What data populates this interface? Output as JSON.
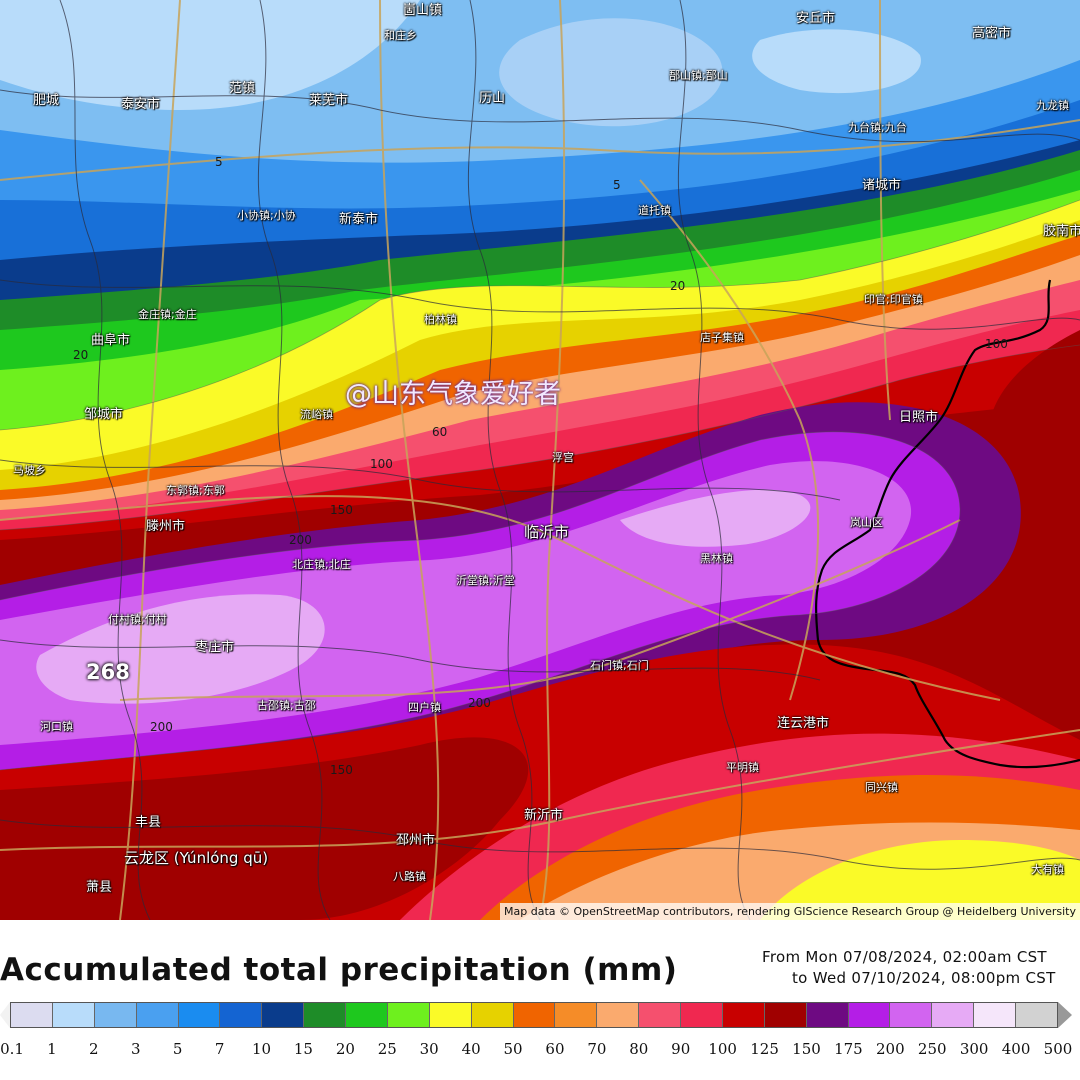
{
  "map": {
    "watermark": "@山东气象爱好者",
    "attribution": "Map data © OpenStreetMap contributors, rendering GIScience Research Group @ Heidelberg University",
    "max_value_label": "268",
    "contour_labels": [
      "5",
      "5",
      "20",
      "20",
      "60",
      "100",
      "150",
      "200",
      "200",
      "200",
      "150",
      "100"
    ],
    "cities": [
      {
        "name": "崮山镇",
        "size": "normal"
      },
      {
        "name": "和庄乡",
        "size": "small"
      },
      {
        "name": "安丘市",
        "size": "normal"
      },
      {
        "name": "高密市",
        "size": "normal"
      },
      {
        "name": "肥城",
        "size": "normal"
      },
      {
        "name": "泰安市",
        "size": "normal"
      },
      {
        "name": "范镇",
        "size": "normal"
      },
      {
        "name": "莱芜市",
        "size": "normal"
      },
      {
        "name": "历山",
        "size": "normal"
      },
      {
        "name": "郚山镇;郚山",
        "size": "small"
      },
      {
        "name": "九龙镇",
        "size": "small"
      },
      {
        "name": "九台镇;九台",
        "size": "small"
      },
      {
        "name": "诸城市",
        "size": "normal"
      },
      {
        "name": "小协镇;小协",
        "size": "small"
      },
      {
        "name": "新泰市",
        "size": "normal"
      },
      {
        "name": "道托镇",
        "size": "small"
      },
      {
        "name": "胶南市",
        "size": "normal"
      },
      {
        "name": "曲阜市",
        "size": "normal"
      },
      {
        "name": "金庄镇;金庄",
        "size": "small"
      },
      {
        "name": "柏林镇",
        "size": "small"
      },
      {
        "name": "店子集镇",
        "size": "small"
      },
      {
        "name": "印官;印官镇",
        "size": "small"
      },
      {
        "name": "邹城市",
        "size": "normal"
      },
      {
        "name": "流峪镇",
        "size": "small"
      },
      {
        "name": "日照市",
        "size": "normal"
      },
      {
        "name": "马坡乡",
        "size": "small"
      },
      {
        "name": "浮宫",
        "size": "small"
      },
      {
        "name": "东郭镇;东郭",
        "size": "small"
      },
      {
        "name": "临沂市",
        "size": "big"
      },
      {
        "name": "滕州市",
        "size": "normal"
      },
      {
        "name": "岚山区",
        "size": "small"
      },
      {
        "name": "北庄镇;北庄",
        "size": "small"
      },
      {
        "name": "沂堂镇;沂堂",
        "size": "small"
      },
      {
        "name": "黑林镇",
        "size": "small"
      },
      {
        "name": "付村镇;付村",
        "size": "small"
      },
      {
        "name": "枣庄市",
        "size": "normal"
      },
      {
        "name": "石门镇;石门",
        "size": "small"
      },
      {
        "name": "河口镇",
        "size": "small"
      },
      {
        "name": "古邵镇;古邵",
        "size": "small"
      },
      {
        "name": "四户镇",
        "size": "small"
      },
      {
        "name": "连云港市",
        "size": "normal"
      },
      {
        "name": "平明镇",
        "size": "small"
      },
      {
        "name": "同兴镇",
        "size": "small"
      },
      {
        "name": "丰县",
        "size": "normal"
      },
      {
        "name": "新沂市",
        "size": "normal"
      },
      {
        "name": "云龙区 (Yúnlóng qū)",
        "size": "big"
      },
      {
        "name": "邳州市",
        "size": "normal"
      },
      {
        "name": "萧县",
        "size": "normal"
      },
      {
        "name": "八路镇",
        "size": "small"
      },
      {
        "name": "大有镇",
        "size": "small"
      }
    ]
  },
  "legend": {
    "title": "Accumulated total precipitation (mm)",
    "period_from": "From Mon 07/08/2024, 02:00am CST",
    "period_to": "to Wed 07/10/2024, 08:00pm CST",
    "ticks": [
      "0.1",
      "1",
      "2",
      "3",
      "5",
      "7",
      "10",
      "15",
      "20",
      "25",
      "30",
      "40",
      "50",
      "60",
      "70",
      "80",
      "90",
      "100",
      "125",
      "150",
      "175",
      "200",
      "250",
      "300",
      "400",
      "500"
    ],
    "colors": [
      "#dcdcf0",
      "#b8dcfa",
      "#78b8f0",
      "#4aa0f0",
      "#1a8cf0",
      "#1464d2",
      "#0a3c8c",
      "#1e8c28",
      "#1ec81e",
      "#6ef01e",
      "#fafa28",
      "#e6d200",
      "#f06400",
      "#f58c28",
      "#faaa6e",
      "#f5506e",
      "#f02850",
      "#c80000",
      "#a00000",
      "#6e0a82",
      "#b41ee6",
      "#d264f0",
      "#e6aaf5",
      "#f5e6fa",
      "#d2d2d2"
    ]
  }
}
